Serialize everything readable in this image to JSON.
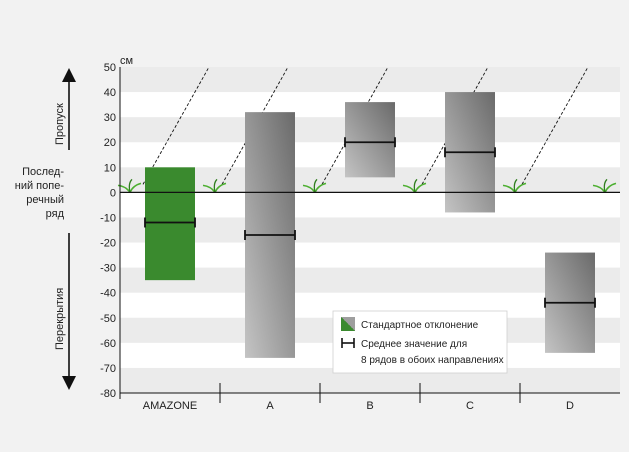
{
  "chart_data": {
    "type": "box",
    "unit": "см",
    "categories": [
      "AMAZONE",
      "A",
      "B",
      "C",
      "D"
    ],
    "std_low": [
      -35,
      -66,
      6,
      -8,
      -64
    ],
    "std_high": [
      10,
      32,
      36,
      40,
      -24
    ],
    "mean": [
      -12,
      -17,
      20,
      16,
      -44
    ],
    "ylim": [
      -80,
      50
    ],
    "yticks": [
      50,
      40,
      30,
      20,
      10,
      0,
      -10,
      -20,
      -30,
      -40,
      -50,
      -60,
      -70,
      -80
    ],
    "grid": true,
    "left_labels": {
      "top": "Пропуск",
      "middle": [
        "Послед-",
        "ний попе-",
        "речный",
        "ряд"
      ],
      "bottom": "Перекрытия"
    },
    "legend": {
      "std": "Стандартное отклонение",
      "mean_line1": "Среднее значение для",
      "mean_line2": "8 рядов в обоих направлениях"
    },
    "colors": {
      "amazone": "#3a8a2e",
      "other_light": "#bdbdbd",
      "other_dark": "#6e6e6e",
      "plot_bg": "#ffffff",
      "band": "#ebebeb",
      "plant": "#4caf30"
    }
  }
}
